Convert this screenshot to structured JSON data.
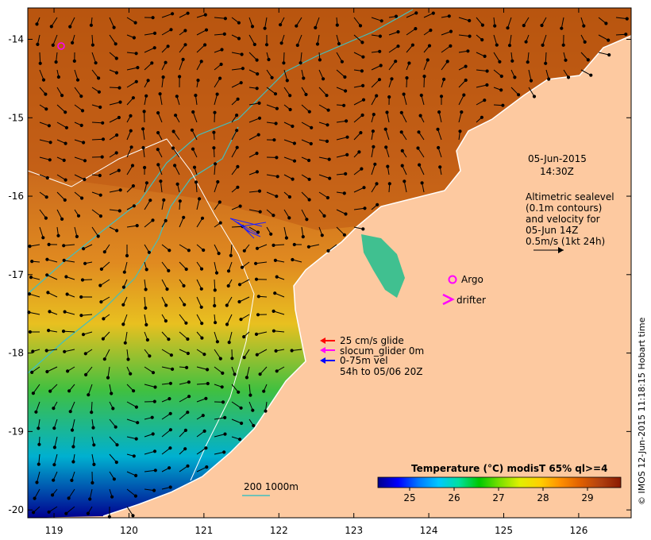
{
  "map": {
    "lon_ticks": [
      "119",
      "120",
      "121",
      "122",
      "123",
      "124",
      "125",
      "126"
    ],
    "lat_ticks": [
      "-14",
      "-15",
      "-16",
      "-17",
      "-18",
      "-19",
      "-20"
    ],
    "lon_range": [
      118.65,
      126.7
    ],
    "lat_range": [
      -13.6,
      -20.1
    ]
  },
  "annotations": {
    "date": "05-Jun-2015",
    "time": "14:30Z",
    "altimetry": [
      "Altimetric sealevel",
      "(0.1m contours)",
      "and velocity for",
      "05-Jun 14Z",
      "0.5m/s (1kt 24h)"
    ]
  },
  "legend": {
    "argo": "Argo",
    "drifter": "drifter",
    "glide": "25 cm/s glide",
    "slocum": "slocum_glider 0m",
    "vel1": "0-75m vel",
    "vel2": "54h to 05/06 20Z"
  },
  "isobaths": "200   1000m",
  "colorbar": {
    "title": "Temperature (°C) modisT 65% ql>=4",
    "ticks": [
      "25",
      "26",
      "27",
      "28",
      "29"
    ],
    "colors": [
      "#00008b",
      "#0000ff",
      "#0078ff",
      "#00c8ff",
      "#00e0a0",
      "#00c800",
      "#78e000",
      "#e0f000",
      "#ffd000",
      "#ff9000",
      "#e06000",
      "#b04010",
      "#8b1a00"
    ]
  },
  "credit": "© IMOS 12-Jun-2015 11:18:15 Hobart time",
  "colors": {
    "land": "#fdc9a0",
    "ocean_warm": "#c8641e",
    "isobath_cyan": "#40c0c0"
  }
}
